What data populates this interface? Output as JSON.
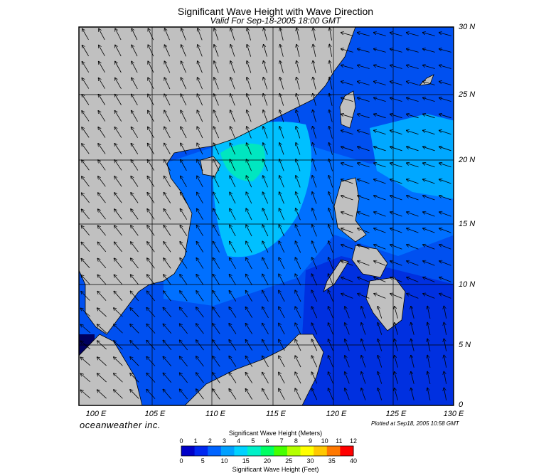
{
  "title": "Significant Wave Height with Wave Direction",
  "subtitle": "Valid For Sep-18-2005 18:00 GMT",
  "brand": "oceanweather inc.",
  "plotted": "Plotted at Sep18, 2005 10:58 GMT",
  "lat_labels": [
    "30 N",
    "25 N",
    "20 N",
    "15 N",
    "10 N",
    "5 N",
    "0"
  ],
  "lon_labels": [
    "100 E",
    "105 E",
    "110 E",
    "115 E",
    "120 E",
    "125 E",
    "130 E"
  ],
  "colorbar": {
    "meters_title": "Significant Wave Height (Meters)",
    "feet_title": "Significant Wave Height (Feet)",
    "meters_ticks": [
      "0",
      "1",
      "2",
      "3",
      "4",
      "5",
      "6",
      "7",
      "8",
      "9",
      "10",
      "11",
      "12"
    ],
    "feet_ticks": [
      "0",
      "5",
      "10",
      "15",
      "20",
      "25",
      "30",
      "35",
      "40"
    ],
    "colors": [
      "#0000c8",
      "#0028f0",
      "#0064ff",
      "#00a0ff",
      "#00d2ff",
      "#00f0c8",
      "#00ff64",
      "#46ff00",
      "#b4ff00",
      "#ffff00",
      "#ffc800",
      "#ff7800",
      "#ff0000"
    ]
  },
  "colors": {
    "land": "#c0c0c0",
    "deep_blue": "#0033dd",
    "mid_blue": "#0070ff",
    "cyan": "#00c8ff",
    "green": "#00f0a0"
  }
}
